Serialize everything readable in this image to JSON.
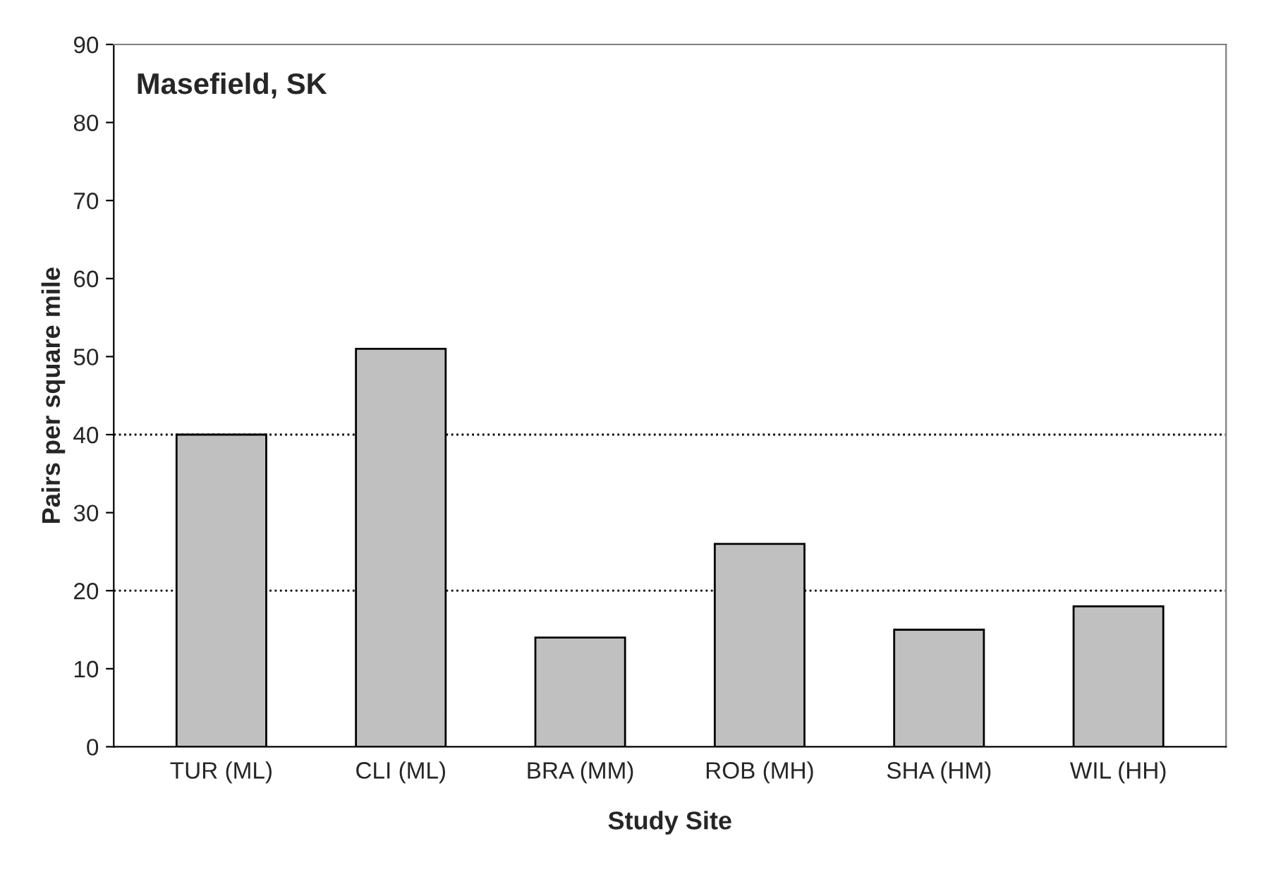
{
  "chart_data": {
    "type": "bar",
    "title": "Masefield, SK",
    "xlabel": "Study Site",
    "ylabel": "Pairs per square mile",
    "categories": [
      "TUR (ML)",
      "CLI (ML)",
      "BRA (MM)",
      "ROB (MH)",
      "SHA (HM)",
      "WIL (HH)"
    ],
    "values": [
      40,
      51,
      14,
      26,
      15,
      18
    ],
    "color": "#c0c0c0",
    "ylim": [
      0,
      90
    ],
    "yticks": [
      0,
      10,
      20,
      30,
      40,
      50,
      60,
      70,
      80,
      90
    ],
    "grid": false,
    "ref_lines": [
      {
        "axis": "y",
        "value": 40,
        "color": "#000000",
        "line_style": "dotted"
      },
      {
        "axis": "y",
        "value": 20,
        "color": "#000000",
        "line_style": "dotted"
      }
    ]
  }
}
